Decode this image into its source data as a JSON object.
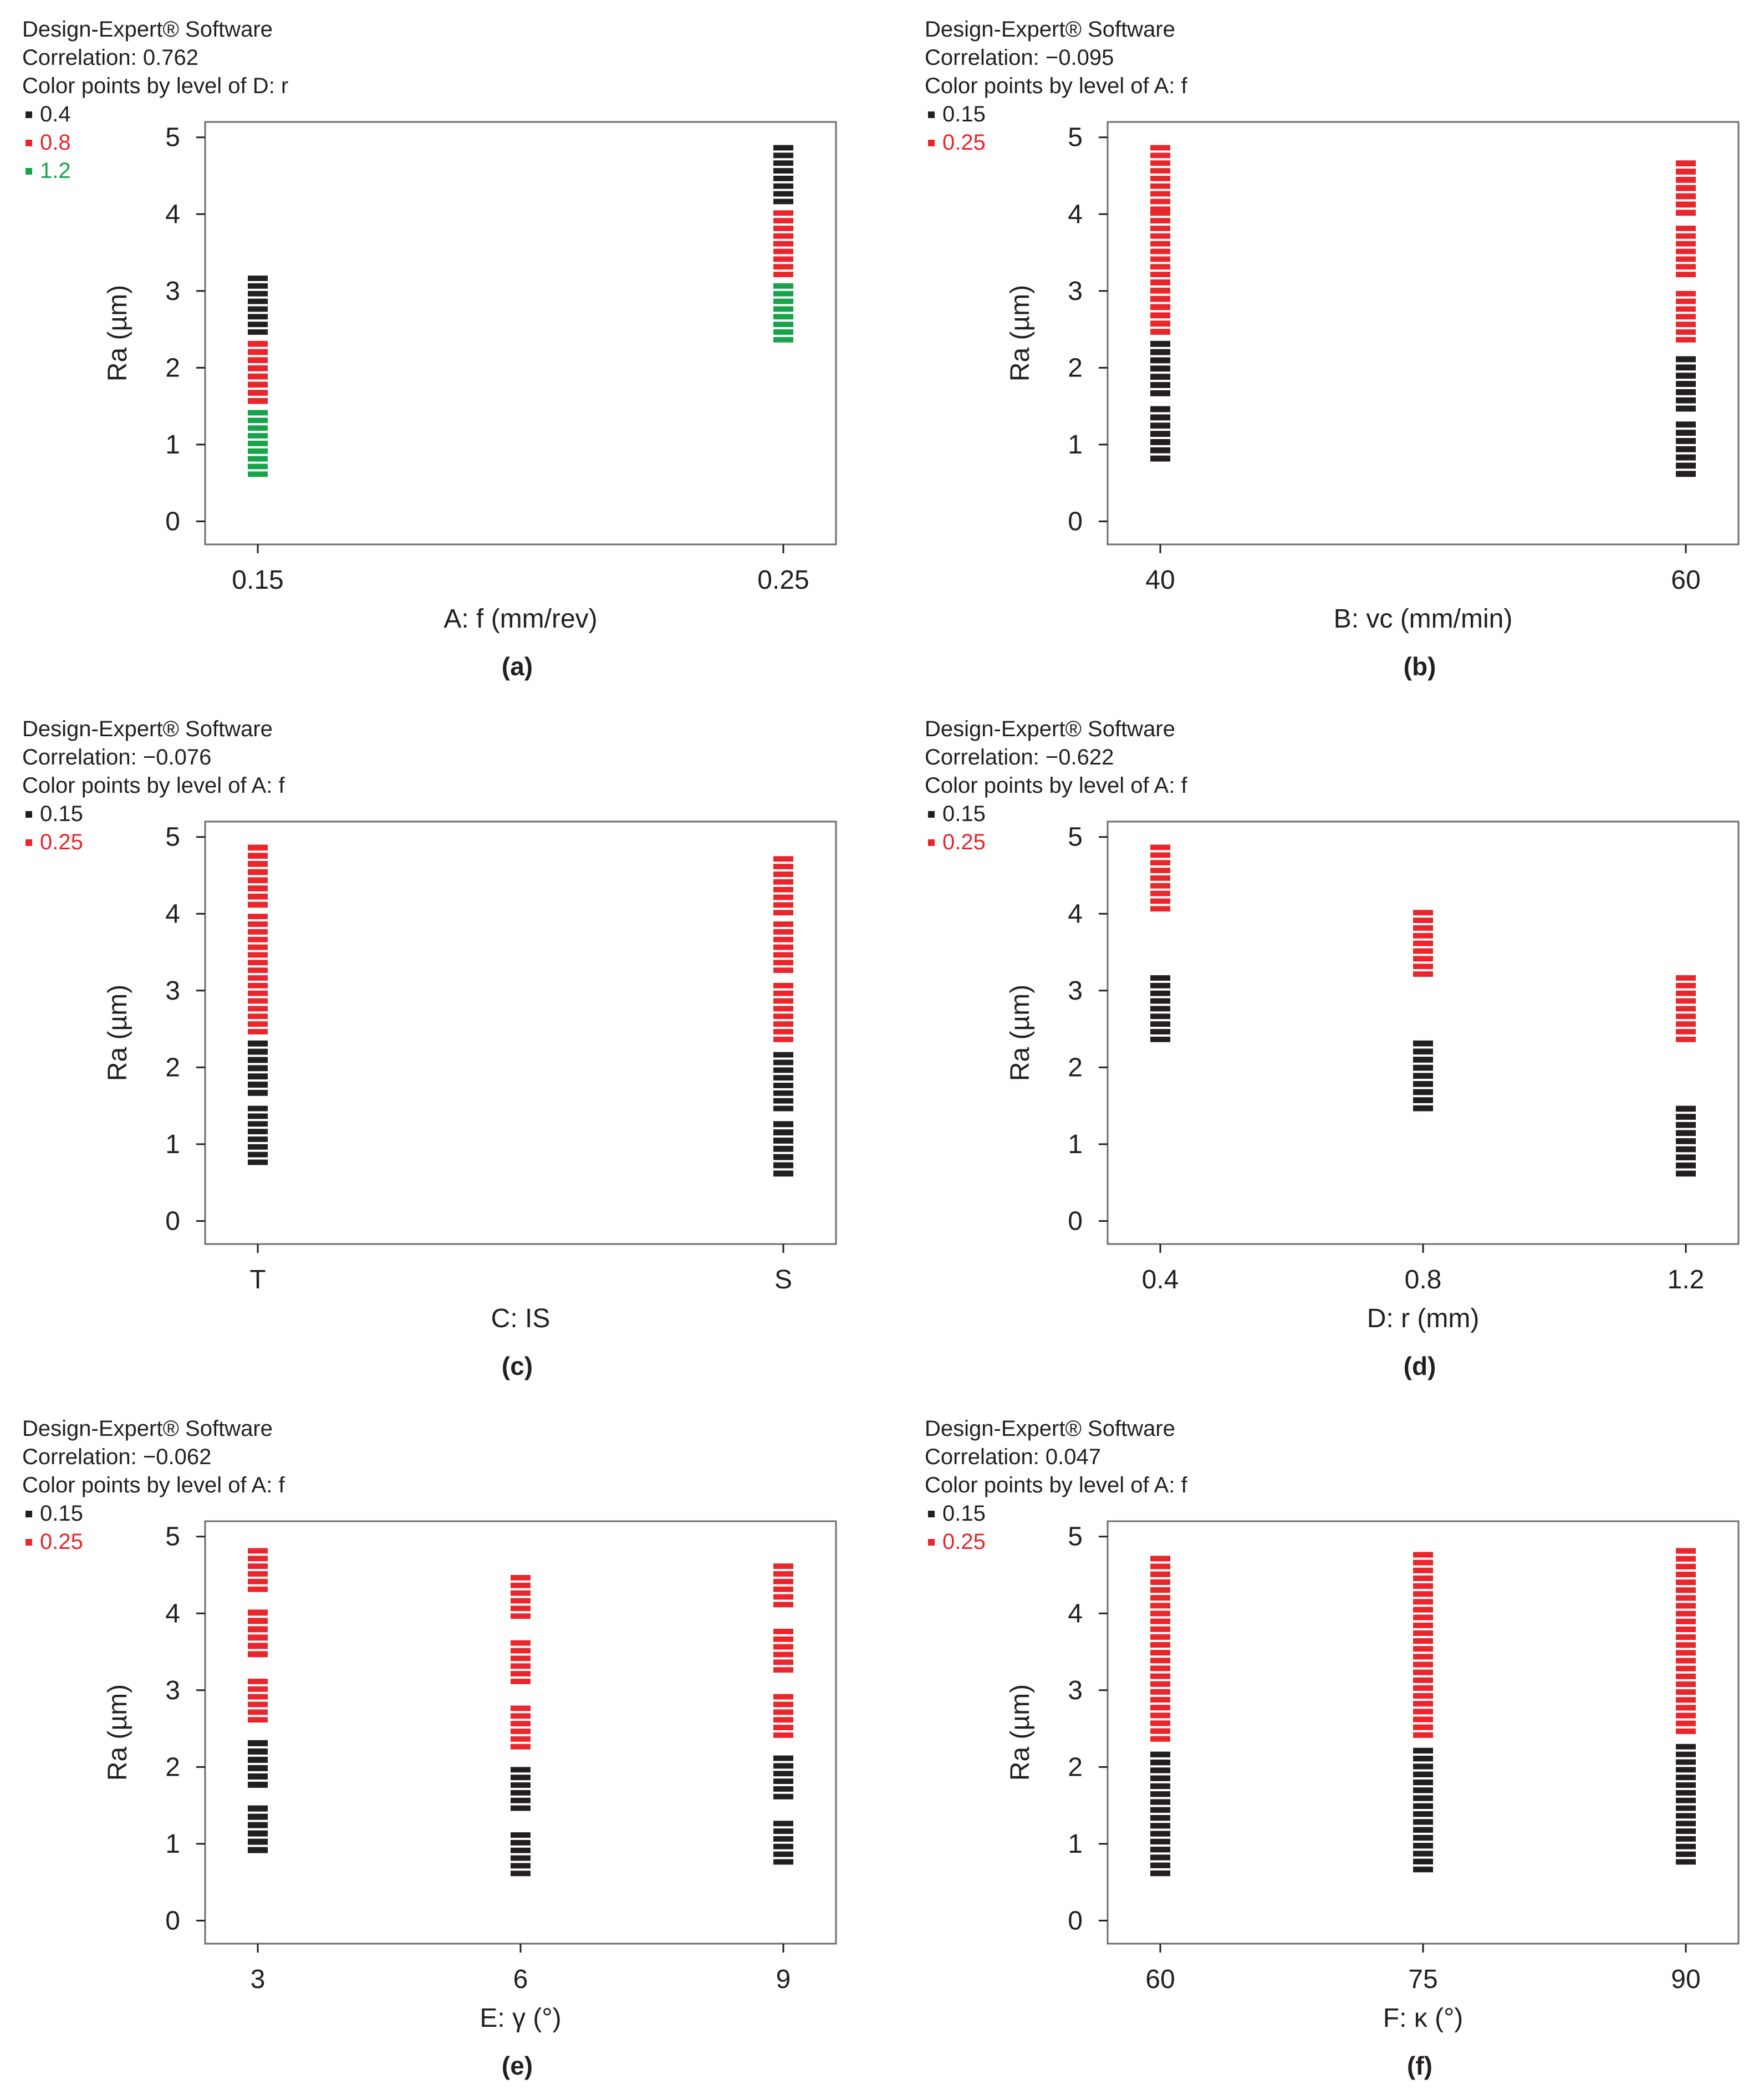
{
  "software_label": "Design-Expert® Software",
  "colors": {
    "black": "#231f20",
    "red": "#e8262b",
    "green": "#16a34a",
    "frame": "#6d6e71"
  },
  "y_axis_label": "Ra (µm)",
  "chart_data": [
    {
      "panel": "(a)",
      "type": "scatter",
      "correlation": "Correlation: 0.762",
      "color_by": "Color points by level of  D: r",
      "legend": [
        {
          "label": "0.4",
          "color": "#231f20"
        },
        {
          "label": "0.8",
          "color": "#e8262b"
        },
        {
          "label": "1.2",
          "color": "#16a34a"
        }
      ],
      "xlabel": "A: f (mm/rev)",
      "x_ticks": [
        "0.15",
        "0.25"
      ],
      "y_ticks": [
        "0",
        "1",
        "2",
        "3",
        "4",
        "5"
      ],
      "ylim": [
        -0.3,
        5.2
      ],
      "series": [
        {
          "x": "0.15",
          "color": "#231f20",
          "y_range": [
            2.4,
            3.2
          ]
        },
        {
          "x": "0.15",
          "color": "#e8262b",
          "y_range": [
            1.5,
            2.35
          ]
        },
        {
          "x": "0.15",
          "color": "#16a34a",
          "y_range": [
            0.55,
            1.45
          ]
        },
        {
          "x": "0.25",
          "color": "#231f20",
          "y_range": [
            4.1,
            4.9
          ]
        },
        {
          "x": "0.25",
          "color": "#e8262b",
          "y_range": [
            3.15,
            4.05
          ]
        },
        {
          "x": "0.25",
          "color": "#16a34a",
          "y_range": [
            2.3,
            3.1
          ]
        }
      ]
    },
    {
      "panel": "(b)",
      "type": "scatter",
      "correlation": "Correlation: −0.095",
      "color_by": "Color points by level of  A: f",
      "legend": [
        {
          "label": "0.15",
          "color": "#231f20"
        },
        {
          "label": "0.25",
          "color": "#e8262b"
        }
      ],
      "xlabel": "B: vc (mm/min)",
      "x_ticks": [
        "40",
        "60"
      ],
      "y_ticks": [
        "0",
        "1",
        "2",
        "3",
        "4",
        "5"
      ],
      "ylim": [
        -0.3,
        5.2
      ],
      "series": [
        {
          "x": "40",
          "color": "#e8262b",
          "y_range": [
            4.0,
            4.9
          ]
        },
        {
          "x": "40",
          "color": "#e8262b",
          "y_range": [
            3.15,
            4.05
          ]
        },
        {
          "x": "40",
          "color": "#e8262b",
          "y_range": [
            2.4,
            3.15
          ]
        },
        {
          "x": "40",
          "color": "#231f20",
          "y_range": [
            1.6,
            2.35
          ]
        },
        {
          "x": "40",
          "color": "#231f20",
          "y_range": [
            0.75,
            1.5
          ]
        },
        {
          "x": "60",
          "color": "#e8262b",
          "y_range": [
            3.95,
            4.7
          ]
        },
        {
          "x": "60",
          "color": "#e8262b",
          "y_range": [
            3.15,
            3.85
          ]
        },
        {
          "x": "60",
          "color": "#e8262b",
          "y_range": [
            2.3,
            3.0
          ]
        },
        {
          "x": "60",
          "color": "#231f20",
          "y_range": [
            1.4,
            2.15
          ]
        },
        {
          "x": "60",
          "color": "#231f20",
          "y_range": [
            0.55,
            1.3
          ]
        }
      ]
    },
    {
      "panel": "(c)",
      "type": "scatter",
      "correlation": "Correlation: −0.076",
      "color_by": "Color points by level of  A: f",
      "legend": [
        {
          "label": "0.15",
          "color": "#231f20"
        },
        {
          "label": "0.25",
          "color": "#e8262b"
        }
      ],
      "xlabel": "C: IS",
      "x_ticks": [
        "T",
        "S"
      ],
      "y_ticks": [
        "0",
        "1",
        "2",
        "3",
        "4",
        "5"
      ],
      "ylim": [
        -0.3,
        5.2
      ],
      "series": [
        {
          "x": "T",
          "color": "#e8262b",
          "y_range": [
            4.05,
            4.9
          ]
        },
        {
          "x": "T",
          "color": "#e8262b",
          "y_range": [
            3.2,
            4.0
          ]
        },
        {
          "x": "T",
          "color": "#e8262b",
          "y_range": [
            2.4,
            3.2
          ]
        },
        {
          "x": "T",
          "color": "#231f20",
          "y_range": [
            1.6,
            2.35
          ]
        },
        {
          "x": "T",
          "color": "#231f20",
          "y_range": [
            0.7,
            1.5
          ]
        },
        {
          "x": "S",
          "color": "#e8262b",
          "y_range": [
            3.95,
            4.75
          ]
        },
        {
          "x": "S",
          "color": "#e8262b",
          "y_range": [
            3.2,
            3.9
          ]
        },
        {
          "x": "S",
          "color": "#e8262b",
          "y_range": [
            2.3,
            3.1
          ]
        },
        {
          "x": "S",
          "color": "#231f20",
          "y_range": [
            1.4,
            2.2
          ]
        },
        {
          "x": "S",
          "color": "#231f20",
          "y_range": [
            0.55,
            1.3
          ]
        }
      ]
    },
    {
      "panel": "(d)",
      "type": "scatter",
      "correlation": "Correlation: −0.622",
      "color_by": "Color points by level of  A: f",
      "legend": [
        {
          "label": "0.15",
          "color": "#231f20"
        },
        {
          "label": "0.25",
          "color": "#e8262b"
        }
      ],
      "xlabel": "D: r (mm)",
      "x_ticks": [
        "0.4",
        "0.8",
        "1.2"
      ],
      "y_ticks": [
        "0",
        "1",
        "2",
        "3",
        "4",
        "5"
      ],
      "ylim": [
        -0.3,
        5.2
      ],
      "series": [
        {
          "x": "0.4",
          "color": "#e8262b",
          "y_range": [
            4.0,
            4.9
          ]
        },
        {
          "x": "0.4",
          "color": "#231f20",
          "y_range": [
            2.3,
            3.2
          ]
        },
        {
          "x": "0.8",
          "color": "#e8262b",
          "y_range": [
            3.15,
            4.05
          ]
        },
        {
          "x": "0.8",
          "color": "#231f20",
          "y_range": [
            1.4,
            2.35
          ]
        },
        {
          "x": "1.2",
          "color": "#e8262b",
          "y_range": [
            2.3,
            3.2
          ]
        },
        {
          "x": "1.2",
          "color": "#231f20",
          "y_range": [
            0.55,
            1.5
          ]
        }
      ]
    },
    {
      "panel": "(e)",
      "type": "scatter",
      "correlation": "Correlation: −0.062",
      "color_by": "Color points by level of  A: f",
      "legend": [
        {
          "label": "0.15",
          "color": "#231f20"
        },
        {
          "label": "0.25",
          "color": "#e8262b"
        }
      ],
      "xlabel": "E: γ (°)",
      "x_ticks": [
        "3",
        "6",
        "9"
      ],
      "y_ticks": [
        "0",
        "1",
        "2",
        "3",
        "4",
        "5"
      ],
      "ylim": [
        -0.3,
        5.2
      ],
      "series": [
        {
          "x": "3",
          "color": "#e8262b",
          "y_range": [
            4.25,
            4.85
          ]
        },
        {
          "x": "3",
          "color": "#e8262b",
          "y_range": [
            3.4,
            4.05
          ]
        },
        {
          "x": "3",
          "color": "#e8262b",
          "y_range": [
            2.55,
            3.15
          ]
        },
        {
          "x": "3",
          "color": "#231f20",
          "y_range": [
            1.7,
            2.35
          ]
        },
        {
          "x": "3",
          "color": "#231f20",
          "y_range": [
            0.85,
            1.5
          ]
        },
        {
          "x": "6",
          "color": "#e8262b",
          "y_range": [
            3.9,
            4.5
          ]
        },
        {
          "x": "6",
          "color": "#e8262b",
          "y_range": [
            3.05,
            3.65
          ]
        },
        {
          "x": "6",
          "color": "#e8262b",
          "y_range": [
            2.2,
            2.8
          ]
        },
        {
          "x": "6",
          "color": "#231f20",
          "y_range": [
            1.4,
            2.0
          ]
        },
        {
          "x": "6",
          "color": "#231f20",
          "y_range": [
            0.55,
            1.15
          ]
        },
        {
          "x": "9",
          "color": "#e8262b",
          "y_range": [
            4.05,
            4.65
          ]
        },
        {
          "x": "9",
          "color": "#e8262b",
          "y_range": [
            3.2,
            3.8
          ]
        },
        {
          "x": "9",
          "color": "#e8262b",
          "y_range": [
            2.35,
            2.95
          ]
        },
        {
          "x": "9",
          "color": "#231f20",
          "y_range": [
            1.55,
            2.15
          ]
        },
        {
          "x": "9",
          "color": "#231f20",
          "y_range": [
            0.7,
            1.3
          ]
        }
      ]
    },
    {
      "panel": "(f)",
      "type": "scatter",
      "correlation": "Correlation: 0.047",
      "color_by": "Color points by level of  A: f",
      "legend": [
        {
          "label": "0.15",
          "color": "#231f20"
        },
        {
          "label": "0.25",
          "color": "#e8262b"
        }
      ],
      "xlabel": "F: κ (°)",
      "x_ticks": [
        "60",
        "75",
        "90"
      ],
      "y_ticks": [
        "0",
        "1",
        "2",
        "3",
        "4",
        "5"
      ],
      "ylim": [
        -0.3,
        5.2
      ],
      "series": [
        {
          "x": "60",
          "color": "#e8262b",
          "y_range": [
            2.3,
            4.75
          ]
        },
        {
          "x": "60",
          "color": "#231f20",
          "y_range": [
            0.55,
            2.2
          ]
        },
        {
          "x": "75",
          "color": "#e8262b",
          "y_range": [
            2.35,
            4.8
          ]
        },
        {
          "x": "75",
          "color": "#231f20",
          "y_range": [
            0.6,
            2.25
          ]
        },
        {
          "x": "90",
          "color": "#e8262b",
          "y_range": [
            2.4,
            4.85
          ]
        },
        {
          "x": "90",
          "color": "#231f20",
          "y_range": [
            0.7,
            2.3
          ]
        }
      ]
    }
  ]
}
